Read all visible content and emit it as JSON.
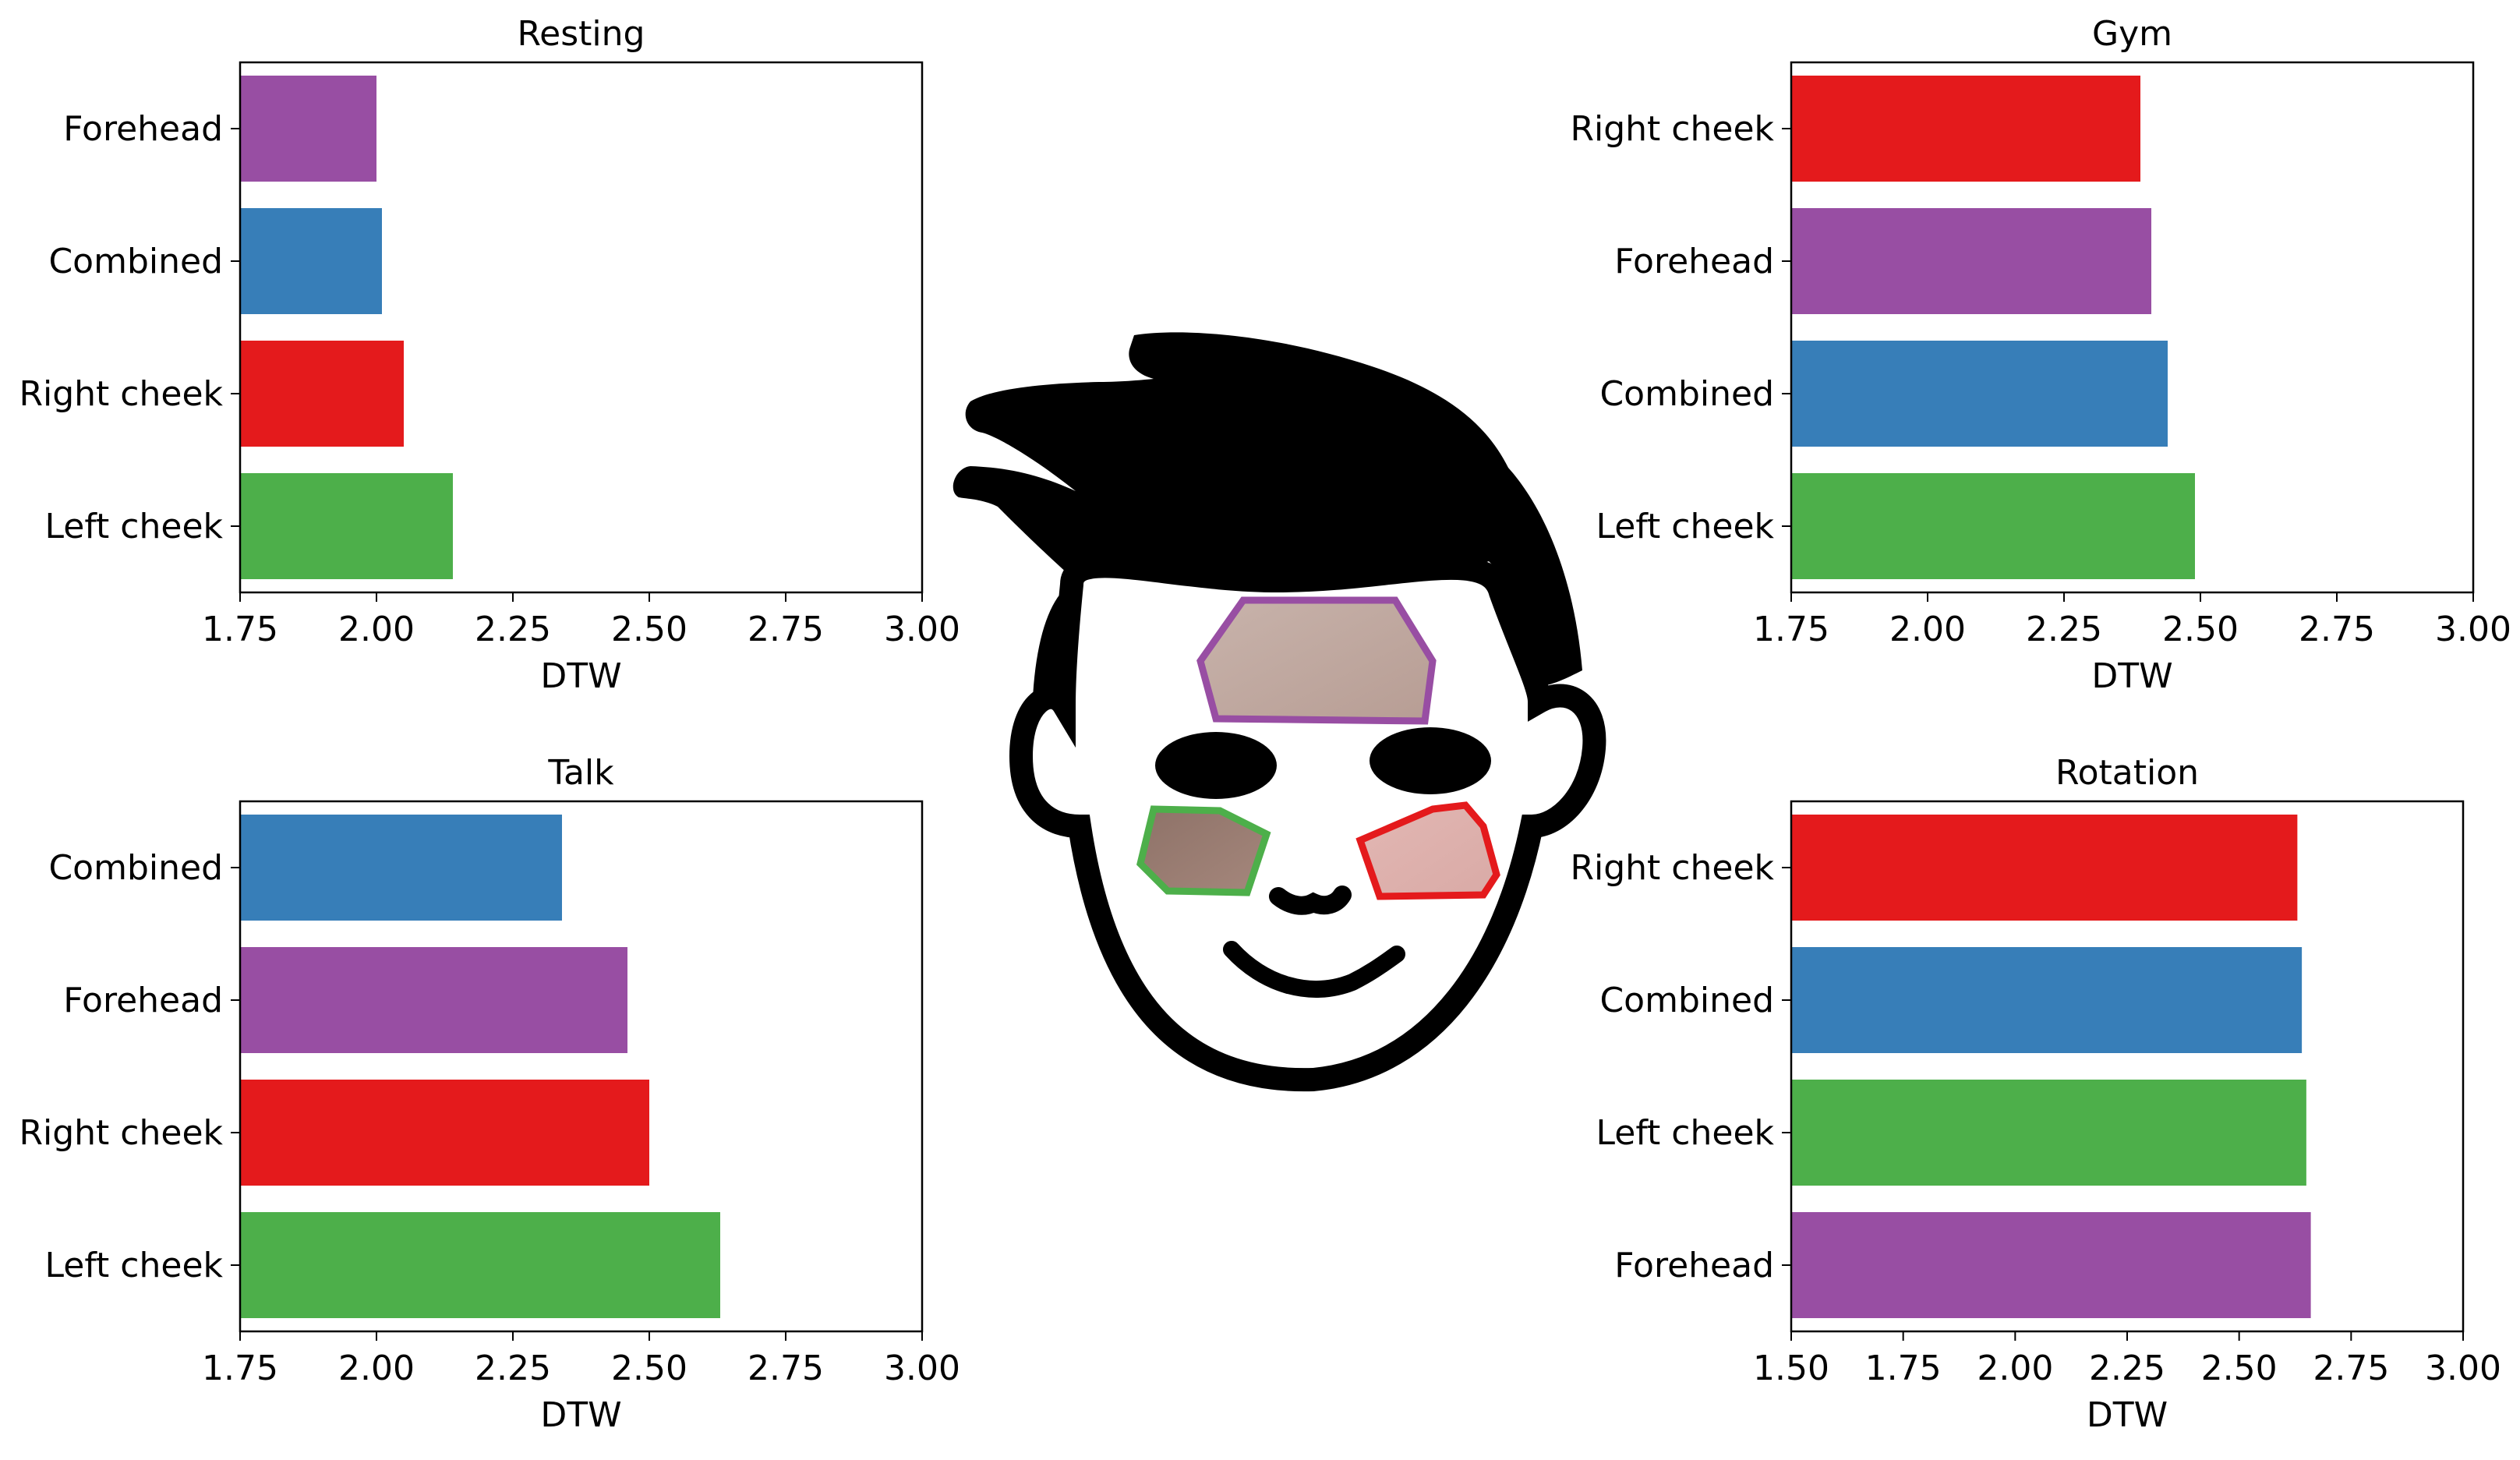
{
  "colors": {
    "Forehead": "#984ea3",
    "Combined": "#377eb8",
    "Right cheek": "#e41a1c",
    "Left cheek": "#4daf4a"
  },
  "chart_data": [
    {
      "type": "bar",
      "orientation": "horizontal",
      "title": "Resting",
      "xlabel": "DTW",
      "ylabel": "",
      "categories": [
        "Forehead",
        "Combined",
        "Right cheek",
        "Left cheek"
      ],
      "values": [
        2.0,
        2.01,
        2.05,
        2.14
      ],
      "xlim": [
        1.75,
        3.0
      ],
      "xticks": [
        "1.75",
        "2.00",
        "2.25",
        "2.50",
        "2.75",
        "3.00"
      ],
      "grid": false
    },
    {
      "type": "bar",
      "orientation": "horizontal",
      "title": "Gym",
      "xlabel": "DTW",
      "ylabel": "",
      "categories": [
        "Right cheek",
        "Forehead",
        "Combined",
        "Left cheek"
      ],
      "values": [
        2.39,
        2.41,
        2.44,
        2.49
      ],
      "xlim": [
        1.75,
        3.0
      ],
      "xticks": [
        "1.75",
        "2.00",
        "2.25",
        "2.50",
        "2.75",
        "3.00"
      ],
      "grid": false
    },
    {
      "type": "bar",
      "orientation": "horizontal",
      "title": "Talk",
      "xlabel": "DTW",
      "ylabel": "",
      "categories": [
        "Combined",
        "Forehead",
        "Right cheek",
        "Left cheek"
      ],
      "values": [
        2.34,
        2.46,
        2.5,
        2.63
      ],
      "xlim": [
        1.75,
        3.0
      ],
      "xticks": [
        "1.75",
        "2.00",
        "2.25",
        "2.50",
        "2.75",
        "3.00"
      ],
      "grid": false
    },
    {
      "type": "bar",
      "orientation": "horizontal",
      "title": "Rotation",
      "xlabel": "DTW",
      "ylabel": "",
      "categories": [
        "Right cheek",
        "Combined",
        "Left cheek",
        "Forehead"
      ],
      "values": [
        2.63,
        2.64,
        2.65,
        2.66
      ],
      "xlim": [
        1.5,
        3.0
      ],
      "xticks": [
        "1.50",
        "1.75",
        "2.00",
        "2.25",
        "2.50",
        "2.75",
        "3.00"
      ],
      "grid": false
    }
  ],
  "illustration": {
    "subject": "cartoon-face",
    "regions": [
      "Forehead",
      "Left cheek",
      "Right cheek"
    ]
  }
}
